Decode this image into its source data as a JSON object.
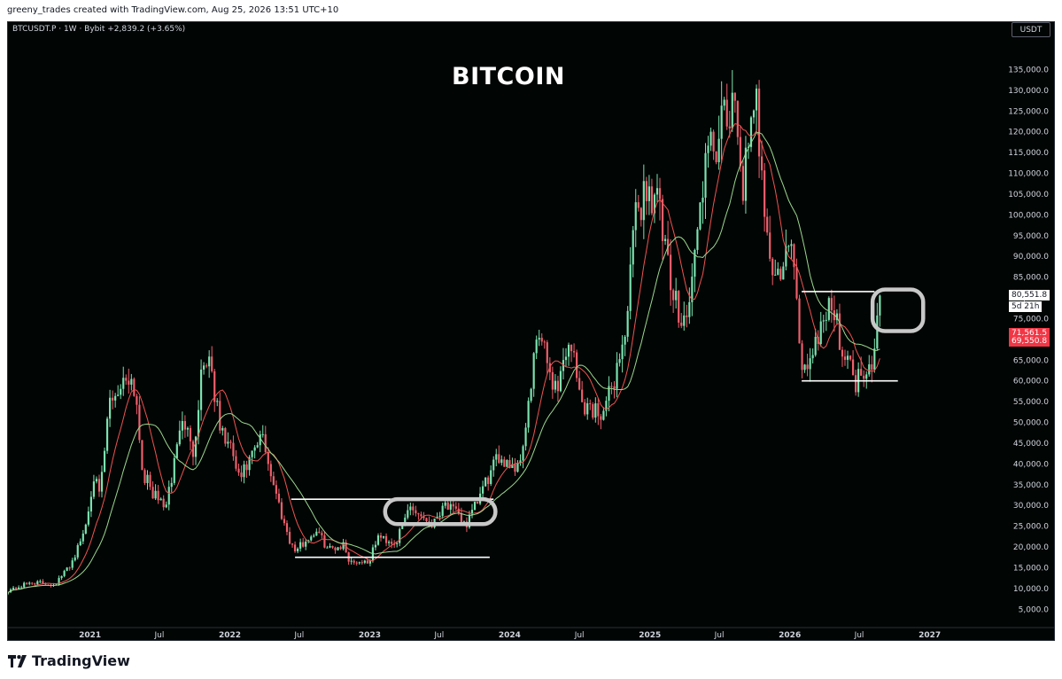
{
  "header": {
    "attribution": "greeny_trades created with TradingView.com, Aug 25, 2026 13:51 UTC+10"
  },
  "legend": {
    "text": "BTCUSDT.P · 1W · Bybit  +2,839.2 (+3.65%)"
  },
  "currency": "USDT",
  "footer": {
    "brand": "TradingView"
  },
  "price_tags": [
    {
      "label": "80,551.8",
      "value": 80551.8,
      "style": "white"
    },
    {
      "label": "5d 21h",
      "value": 77800,
      "style": "white"
    },
    {
      "label": "71,561.5",
      "value": 71561.5,
      "style": "red"
    },
    {
      "label": "69,550.8",
      "value": 69550.8,
      "style": "red"
    }
  ],
  "colors": {
    "up": "#7be3b0",
    "down": "#ef5f6c",
    "ma_fast": "#ef5350",
    "ma_slow": "#9bd88f",
    "background": "#010504",
    "annotation": "#ffffff"
  },
  "chart_data": {
    "type": "candlestick",
    "title": "BITCOIN",
    "symbol": "BTCUSDT.P",
    "interval": "1W",
    "exchange": "Bybit",
    "change": "+2,839.2 (+3.65%)",
    "x_range": [
      "2020-06-01",
      "2027-07-15"
    ],
    "x_ticks": [
      {
        "label": "2021",
        "date": "2021-01-01"
      },
      {
        "label": "Jul",
        "date": "2021-07-01"
      },
      {
        "label": "2022",
        "date": "2022-01-01"
      },
      {
        "label": "Jul",
        "date": "2022-07-01"
      },
      {
        "label": "2023",
        "date": "2023-01-01"
      },
      {
        "label": "Jul",
        "date": "2023-07-01"
      },
      {
        "label": "2024",
        "date": "2024-01-01"
      },
      {
        "label": "Jul",
        "date": "2024-07-01"
      },
      {
        "label": "2025",
        "date": "2025-01-01"
      },
      {
        "label": "Jul",
        "date": "2025-07-01"
      },
      {
        "label": "2026",
        "date": "2026-01-01"
      },
      {
        "label": "Jul",
        "date": "2026-07-01"
      },
      {
        "label": "2027",
        "date": "2027-01-01"
      }
    ],
    "y_ticks": [
      5000,
      10000,
      15000,
      20000,
      25000,
      30000,
      35000,
      40000,
      45000,
      50000,
      55000,
      60000,
      65000,
      70000,
      75000,
      80000,
      85000,
      90000,
      95000,
      100000,
      105000,
      110000,
      115000,
      120000,
      125000,
      130000,
      135000
    ],
    "y_tick_labels": [
      "5,000.0",
      "10,000.0",
      "15,000.0",
      "20,000.0",
      "25,000.0",
      "30,000.0",
      "35,000.0",
      "40,000.0",
      "45,000.0",
      "50,000.0",
      "55,000.0",
      "60,000.0",
      "65,000.0",
      "70,000.0",
      "75,000.0",
      "80,000.0",
      "85,000.0",
      "90,000.0",
      "95,000.0",
      "100,000.0",
      "105,000.0",
      "110,000.0",
      "115,000.0",
      "120,000.0",
      "125,000.0",
      "130,000.0",
      "135,000.0"
    ],
    "price_path": [
      [
        "2020-06-01",
        9500
      ],
      [
        "2020-08-01",
        11500
      ],
      [
        "2020-10-01",
        11000
      ],
      [
        "2020-11-15",
        16500
      ],
      [
        "2020-12-20",
        25000
      ],
      [
        "2021-01-10",
        38000
      ],
      [
        "2021-01-25",
        32000
      ],
      [
        "2021-02-20",
        55000
      ],
      [
        "2021-03-15",
        58000
      ],
      [
        "2021-04-13",
        62000
      ],
      [
        "2021-05-01",
        57000
      ],
      [
        "2021-05-19",
        38000
      ],
      [
        "2021-06-20",
        32000
      ],
      [
        "2021-07-20",
        30000
      ],
      [
        "2021-08-20",
        48000
      ],
      [
        "2021-09-07",
        50000
      ],
      [
        "2021-09-25",
        42000
      ],
      [
        "2021-10-20",
        64000
      ],
      [
        "2021-11-10",
        66000
      ],
      [
        "2021-12-05",
        49000
      ],
      [
        "2022-01-10",
        42000
      ],
      [
        "2022-01-25",
        36000
      ],
      [
        "2022-03-28",
        47000
      ],
      [
        "2022-05-10",
        30000
      ],
      [
        "2022-06-18",
        19000
      ],
      [
        "2022-08-15",
        24000
      ],
      [
        "2022-09-15",
        19500
      ],
      [
        "2022-10-25",
        20500
      ],
      [
        "2022-11-10",
        16500
      ],
      [
        "2022-12-31",
        16500
      ],
      [
        "2023-01-20",
        22500
      ],
      [
        "2023-03-10",
        21000
      ],
      [
        "2023-04-14",
        30000
      ],
      [
        "2023-06-15",
        25500
      ],
      [
        "2023-07-13",
        31000
      ],
      [
        "2023-09-11",
        25500
      ],
      [
        "2023-10-25",
        34500
      ],
      [
        "2023-12-05",
        42000
      ],
      [
        "2024-01-23",
        39000
      ],
      [
        "2024-02-28",
        60000
      ],
      [
        "2024-03-14",
        72000
      ],
      [
        "2024-05-01",
        58000
      ],
      [
        "2024-06-07",
        71000
      ],
      [
        "2024-07-05",
        55000
      ],
      [
        "2024-08-05",
        53000
      ],
      [
        "2024-09-06",
        53000
      ],
      [
        "2024-10-29",
        72000
      ],
      [
        "2024-11-22",
        98000
      ],
      [
        "2024-12-17",
        106000
      ],
      [
        "2025-01-20",
        105000
      ],
      [
        "2025-02-28",
        80000
      ],
      [
        "2025-04-07",
        75000
      ],
      [
        "2025-05-22",
        111000
      ],
      [
        "2025-07-14",
        122000
      ],
      [
        "2025-08-14",
        124000
      ],
      [
        "2025-09-01",
        108000
      ],
      [
        "2025-10-06",
        126000
      ],
      [
        "2025-11-21",
        83000
      ],
      [
        "2026-01-05",
        93000
      ],
      [
        "2026-02-05",
        62000
      ],
      [
        "2026-03-10",
        70000
      ],
      [
        "2026-04-14",
        80000
      ],
      [
        "2026-05-20",
        68000
      ],
      [
        "2026-06-20",
        60000
      ],
      [
        "2026-07-22",
        64000
      ],
      [
        "2026-08-05",
        66000
      ],
      [
        "2026-08-25",
        80551.8
      ]
    ],
    "annotations": [
      {
        "type": "hline",
        "price": 31500,
        "from": "2022-06-10",
        "to": "2023-11-20"
      },
      {
        "type": "hline",
        "price": 17500,
        "from": "2022-06-20",
        "to": "2023-11-10"
      },
      {
        "type": "hline",
        "price": 81500,
        "from": "2026-02-01",
        "to": "2026-08-10"
      },
      {
        "type": "hline",
        "price": 60000,
        "from": "2026-02-01",
        "to": "2026-10-10"
      },
      {
        "type": "hand-drawn-box",
        "from": "2023-02-10",
        "to": "2023-11-25",
        "low": 25500,
        "high": 31500
      },
      {
        "type": "hand-drawn-box",
        "from": "2026-08-05",
        "to": "2026-12-15",
        "low": 72000,
        "high": 82000
      }
    ]
  }
}
